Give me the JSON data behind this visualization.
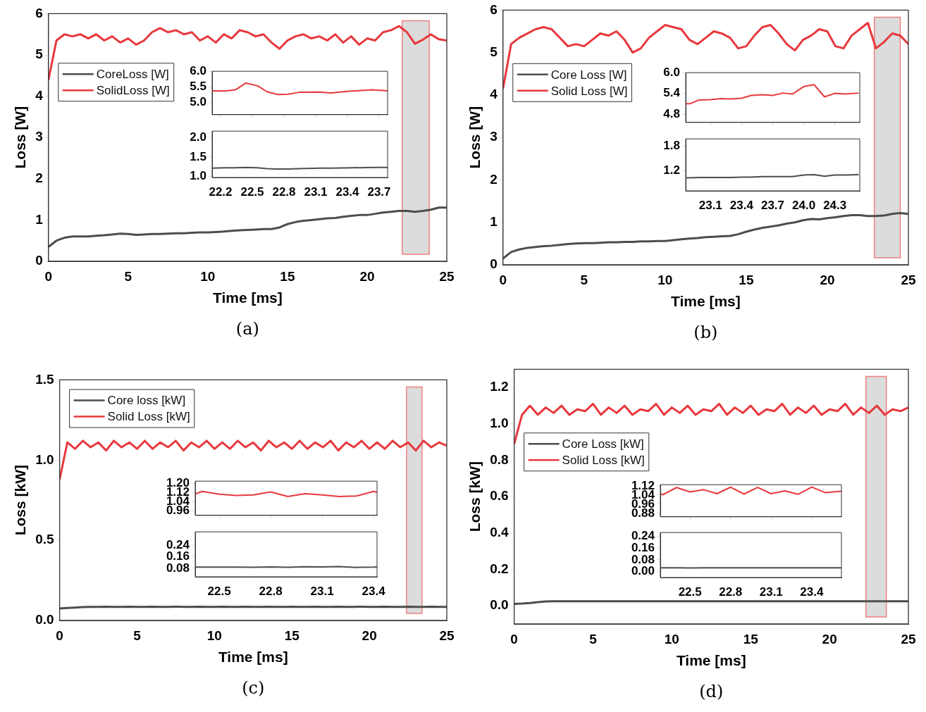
{
  "chart_data": [
    {
      "type": "line",
      "xlabel": "Time [ms]",
      "ylabel": "Loss [W]",
      "xlim": [
        0,
        25
      ],
      "xticks": [
        0,
        5,
        10,
        15,
        20,
        25
      ],
      "ylim": [
        0,
        6
      ],
      "yticks": [
        0,
        1,
        2,
        3,
        4,
        5,
        6
      ],
      "legend": "top left",
      "annotations": [
        "(a)"
      ],
      "bands": [
        {
          "axis": "x",
          "from": 22.2,
          "to": 23.9,
          "color": "#dcdcdc"
        }
      ],
      "x": [
        0,
        0.5,
        1,
        1.5,
        2,
        2.5,
        3,
        3.5,
        4,
        4.5,
        5,
        5.5,
        6,
        6.5,
        7,
        7.5,
        8,
        8.5,
        9,
        9.5,
        10,
        10.5,
        11,
        11.5,
        12,
        12.5,
        13,
        13.5,
        14,
        14.5,
        15,
        15.5,
        16,
        16.5,
        17,
        17.5,
        18,
        18.5,
        19,
        19.5,
        20,
        20.5,
        21,
        21.5,
        22,
        22.5,
        23,
        23.5,
        24,
        24.5,
        25
      ],
      "series": [
        {
          "name": "CoreLoss [W]",
          "color": "#4d4d4d",
          "values": [
            0.35,
            0.5,
            0.57,
            0.6,
            0.6,
            0.6,
            0.62,
            0.63,
            0.65,
            0.67,
            0.66,
            0.64,
            0.65,
            0.66,
            0.66,
            0.67,
            0.68,
            0.68,
            0.69,
            0.7,
            0.7,
            0.71,
            0.72,
            0.74,
            0.75,
            0.76,
            0.77,
            0.78,
            0.78,
            0.82,
            0.9,
            0.95,
            0.98,
            1.0,
            1.02,
            1.04,
            1.05,
            1.08,
            1.1,
            1.12,
            1.12,
            1.15,
            1.18,
            1.2,
            1.22,
            1.22,
            1.2,
            1.22,
            1.25,
            1.3,
            1.3
          ]
        },
        {
          "name": "SolidLoss [W]",
          "color": "#e8383d",
          "values": [
            4.4,
            5.35,
            5.5,
            5.45,
            5.5,
            5.4,
            5.5,
            5.35,
            5.45,
            5.3,
            5.4,
            5.25,
            5.35,
            5.55,
            5.65,
            5.55,
            5.6,
            5.5,
            5.55,
            5.35,
            5.45,
            5.3,
            5.5,
            5.4,
            5.6,
            5.55,
            5.45,
            5.5,
            5.3,
            5.15,
            5.35,
            5.45,
            5.5,
            5.4,
            5.45,
            5.35,
            5.5,
            5.3,
            5.45,
            5.25,
            5.4,
            5.35,
            5.55,
            5.6,
            5.7,
            5.55,
            5.27,
            5.37,
            5.5,
            5.38,
            5.35
          ]
        }
      ]
    },
    {
      "type": "line",
      "tick_labels": "y",
      "xlim": [
        22.12,
        23.78
      ],
      "xticks": [
        22.2,
        22.5,
        22.8,
        23.1,
        23.4,
        23.7
      ],
      "ylim": [
        4.6,
        6.0
      ],
      "yticks": [
        {
          "value": 5.0,
          "label": "5.0"
        },
        5.5,
        {
          "value": 6.0,
          "label": "6.0"
        }
      ],
      "x": [
        22.12,
        22.24,
        22.34,
        22.44,
        22.55,
        22.64,
        22.74,
        22.84,
        22.94,
        23.14,
        23.24,
        23.44,
        23.64,
        23.78
      ],
      "series": [
        {
          "color": "#e8383d",
          "values": [
            5.37,
            5.36,
            5.4,
            5.62,
            5.53,
            5.34,
            5.25,
            5.26,
            5.32,
            5.33,
            5.3,
            5.36,
            5.4,
            5.37
          ]
        }
      ]
    },
    {
      "type": "line",
      "xlim": [
        22.12,
        23.78
      ],
      "xticks": [
        22.2,
        22.5,
        22.8,
        23.1,
        23.4,
        23.7
      ],
      "ylim": [
        0.97,
        2.17
      ],
      "yticks": [
        {
          "value": 1.0,
          "label": "1.0"
        },
        1.5,
        {
          "value": 2.0,
          "label": "2.0"
        }
      ],
      "x": [
        22.12,
        22.24,
        22.34,
        22.44,
        22.55,
        22.64,
        22.74,
        22.84,
        22.94,
        23.14,
        23.24,
        23.44,
        23.64,
        23.78
      ],
      "series": [
        {
          "color": "#4d4d4d",
          "values": [
            1.21,
            1.22,
            1.22,
            1.23,
            1.22,
            1.2,
            1.19,
            1.19,
            1.2,
            1.21,
            1.21,
            1.22,
            1.23,
            1.23
          ]
        }
      ]
    },
    {
      "type": "line",
      "xlabel": "Time [ms]",
      "ylabel": "Loss [W]",
      "xlim": [
        0,
        25
      ],
      "xticks": [
        0,
        5,
        10,
        15,
        20,
        25
      ],
      "ylim": [
        0,
        6
      ],
      "yticks": [
        0,
        1,
        2,
        3,
        4,
        5,
        6
      ],
      "legend": "top left",
      "annotations": [
        "(b)"
      ],
      "bands": [
        {
          "axis": "x",
          "from": 22.9,
          "to": 24.5,
          "color": "#dcdcdc"
        }
      ],
      "x": [
        0,
        0.5,
        1,
        1.5,
        2,
        2.5,
        3,
        3.5,
        4,
        4.5,
        5,
        5.5,
        6,
        6.5,
        7,
        7.5,
        8,
        8.5,
        9,
        9.5,
        10,
        10.5,
        11,
        11.5,
        12,
        12.5,
        13,
        13.5,
        14,
        14.5,
        15,
        15.5,
        16,
        16.5,
        17,
        17.5,
        18,
        18.5,
        19,
        19.5,
        20,
        20.5,
        21,
        21.5,
        22,
        22.5,
        23,
        23.5,
        24,
        24.5,
        25
      ],
      "series": [
        {
          "name": "Core Loss [W]",
          "color": "#4d4d4d",
          "values": [
            0.15,
            0.3,
            0.36,
            0.4,
            0.42,
            0.44,
            0.45,
            0.47,
            0.49,
            0.5,
            0.51,
            0.51,
            0.52,
            0.53,
            0.53,
            0.54,
            0.54,
            0.55,
            0.55,
            0.56,
            0.56,
            0.58,
            0.6,
            0.62,
            0.63,
            0.65,
            0.66,
            0.67,
            0.68,
            0.72,
            0.78,
            0.83,
            0.87,
            0.9,
            0.93,
            0.97,
            1.0,
            1.05,
            1.08,
            1.07,
            1.1,
            1.12,
            1.15,
            1.17,
            1.17,
            1.15,
            1.15,
            1.16,
            1.2,
            1.22,
            1.2
          ]
        },
        {
          "name": "Solid Loss [W]",
          "color": "#e8383d",
          "values": [
            4.15,
            5.2,
            5.35,
            5.45,
            5.55,
            5.6,
            5.55,
            5.35,
            5.15,
            5.2,
            5.15,
            5.3,
            5.45,
            5.4,
            5.5,
            5.3,
            5.0,
            5.1,
            5.35,
            5.5,
            5.65,
            5.6,
            5.55,
            5.3,
            5.2,
            5.35,
            5.5,
            5.45,
            5.35,
            5.1,
            5.15,
            5.4,
            5.6,
            5.65,
            5.45,
            5.2,
            5.05,
            5.3,
            5.4,
            5.55,
            5.5,
            5.15,
            5.1,
            5.4,
            5.55,
            5.7,
            5.1,
            5.25,
            5.45,
            5.4,
            5.2
          ]
        }
      ]
    },
    {
      "type": "line",
      "tick_labels": "y",
      "xlim": [
        22.86,
        24.54
      ],
      "xticks": [
        23.1,
        23.4,
        23.7,
        {
          "value": 24.0,
          "label": null
        },
        24.3
      ],
      "ylim": [
        4.56,
        6.0
      ],
      "yticks": [
        4.8,
        5.4,
        {
          "value": 6.0,
          "label": "6.0"
        }
      ],
      "x": [
        22.86,
        22.9,
        22.99,
        23.1,
        23.2,
        23.3,
        23.4,
        23.49,
        23.6,
        23.7,
        23.8,
        23.89,
        24.0,
        24.1,
        24.2,
        24.3,
        24.4,
        24.53
      ],
      "series": [
        {
          "color": "#e8383d",
          "values": [
            5.1,
            5.1,
            5.21,
            5.22,
            5.25,
            5.24,
            5.26,
            5.34,
            5.36,
            5.34,
            5.41,
            5.38,
            5.6,
            5.65,
            5.3,
            5.4,
            5.38,
            5.41
          ]
        }
      ]
    },
    {
      "type": "line",
      "xlim": [
        22.86,
        24.54
      ],
      "xticks": [
        23.1,
        23.4,
        23.7,
        {
          "value": 24.0,
          "label": "24.0"
        },
        24.3
      ],
      "ylim": [
        0.7,
        1.98
      ],
      "yticks": [
        1.2,
        1.8
      ],
      "x": [
        22.86,
        22.9,
        22.99,
        23.1,
        23.2,
        23.3,
        23.4,
        23.49,
        23.6,
        23.7,
        23.8,
        23.89,
        24.0,
        24.1,
        24.2,
        24.3,
        24.4,
        24.53
      ],
      "series": [
        {
          "color": "#4d4d4d",
          "values": [
            1.02,
            1.02,
            1.03,
            1.03,
            1.03,
            1.03,
            1.04,
            1.04,
            1.05,
            1.05,
            1.05,
            1.05,
            1.09,
            1.1,
            1.06,
            1.09,
            1.09,
            1.1
          ]
        }
      ]
    },
    {
      "type": "line",
      "xlabel": "Time [ms]",
      "ylabel": "Loss [kW]",
      "xlim": [
        0,
        25
      ],
      "xticks": [
        0,
        5,
        10,
        15,
        20,
        25
      ],
      "ylim": [
        0,
        1.5
      ],
      "yticks": [
        {
          "value": 0,
          "label": "0.0"
        },
        0.5,
        {
          "value": 1,
          "label": "1.0"
        },
        1.5
      ],
      "legend": "top left",
      "annotations": [
        "(c)"
      ],
      "bands": [
        {
          "axis": "x",
          "from": 22.4,
          "to": 23.4,
          "color": "#dcdcdc"
        }
      ],
      "x": [
        0,
        0.5,
        1,
        1.5,
        2,
        2.5,
        3,
        3.5,
        4,
        4.5,
        5,
        5.5,
        6,
        6.5,
        7,
        7.5,
        8,
        8.5,
        9,
        9.5,
        10,
        10.5,
        11,
        11.5,
        12,
        12.5,
        13,
        13.5,
        14,
        14.5,
        15,
        15.5,
        16,
        16.5,
        17,
        17.5,
        18,
        18.5,
        19,
        19.5,
        20,
        20.5,
        21,
        21.5,
        22,
        22.5,
        23,
        23.5,
        24,
        24.5,
        25
      ],
      "series": [
        {
          "name": "Core loss [kW]",
          "color": "#4d4d4d",
          "values": [
            0.075,
            0.078,
            0.08,
            0.083,
            0.085,
            0.085,
            0.086,
            0.085,
            0.085,
            0.086,
            0.085,
            0.085,
            0.086,
            0.085,
            0.085,
            0.086,
            0.085,
            0.085,
            0.086,
            0.085,
            0.085,
            0.086,
            0.085,
            0.085,
            0.086,
            0.085,
            0.085,
            0.086,
            0.085,
            0.085,
            0.086,
            0.085,
            0.085,
            0.086,
            0.085,
            0.085,
            0.086,
            0.085,
            0.085,
            0.086,
            0.085,
            0.085,
            0.086,
            0.085,
            0.085,
            0.086,
            0.085,
            0.085,
            0.086,
            0.085,
            0.085
          ]
        },
        {
          "name": "Solid Loss [kW]",
          "color": "#e8383d",
          "values": [
            0.88,
            1.11,
            1.07,
            1.12,
            1.08,
            1.11,
            1.06,
            1.12,
            1.08,
            1.11,
            1.07,
            1.12,
            1.07,
            1.11,
            1.08,
            1.12,
            1.06,
            1.11,
            1.08,
            1.12,
            1.07,
            1.11,
            1.07,
            1.12,
            1.08,
            1.11,
            1.06,
            1.12,
            1.08,
            1.11,
            1.07,
            1.12,
            1.07,
            1.11,
            1.08,
            1.12,
            1.06,
            1.11,
            1.08,
            1.12,
            1.07,
            1.11,
            1.07,
            1.12,
            1.08,
            1.11,
            1.06,
            1.12,
            1.08,
            1.11,
            1.09
          ]
        }
      ]
    },
    {
      "type": "line",
      "tick_labels": "y",
      "xlim": [
        22.36,
        23.42
      ],
      "xticks": [
        22.5,
        22.8,
        23.1,
        23.4
      ],
      "ylim": [
        0.92,
        1.22
      ],
      "yticks": [
        {
          "value": 0.96,
          "label": "0.96"
        },
        {
          "value": 1.04,
          "label": "1.04"
        },
        {
          "value": 1.12,
          "label": "1.12"
        },
        {
          "value": 1.2,
          "label": "1.20"
        }
      ],
      "x": [
        22.36,
        22.4,
        22.5,
        22.6,
        22.7,
        22.8,
        22.9,
        23.0,
        23.1,
        23.2,
        23.3,
        23.4,
        23.42
      ],
      "series": [
        {
          "color": "#e8383d",
          "values": [
            1.106,
            1.13,
            1.106,
            1.095,
            1.1,
            1.125,
            1.085,
            1.11,
            1.1,
            1.085,
            1.09,
            1.13,
            1.12
          ]
        }
      ]
    },
    {
      "type": "line",
      "xlim": [
        22.36,
        23.42
      ],
      "xticks": [
        22.5,
        22.8,
        23.1,
        23.4
      ],
      "ylim": [
        0.02,
        0.335
      ],
      "yticks": [
        0.08,
        0.16,
        0.24
      ],
      "x": [
        22.36,
        22.4,
        22.5,
        22.6,
        22.7,
        22.8,
        22.9,
        23.0,
        23.1,
        23.2,
        23.3,
        23.4,
        23.42
      ],
      "series": [
        {
          "color": "#4d4d4d",
          "values": [
            0.088,
            0.088,
            0.088,
            0.088,
            0.087,
            0.089,
            0.087,
            0.09,
            0.089,
            0.091,
            0.086,
            0.088,
            0.089
          ]
        }
      ]
    },
    {
      "type": "line",
      "xlabel": "Time [ms]",
      "ylabel": "Loss [kW]",
      "xlim": [
        0,
        25
      ],
      "xticks": [
        0,
        5,
        10,
        15,
        20,
        25
      ],
      "ylim": [
        -0.1,
        1.3
      ],
      "yticks": [
        {
          "value": 0,
          "label": "0.0"
        },
        0.2,
        0.4,
        0.6,
        0.8,
        {
          "value": 1,
          "label": "1.0"
        },
        1.2
      ],
      "legend": "top left",
      "annotations": [
        "(d)"
      ],
      "bands": [
        {
          "axis": "x",
          "from": 22.3,
          "to": 23.6,
          "color": "#dcdcdc"
        }
      ],
      "x": [
        0,
        0.5,
        1,
        1.5,
        2,
        2.5,
        3,
        3.5,
        4,
        4.5,
        5,
        5.5,
        6,
        6.5,
        7,
        7.5,
        8,
        8.5,
        9,
        9.5,
        10,
        10.5,
        11,
        11.5,
        12,
        12.5,
        13,
        13.5,
        14,
        14.5,
        15,
        15.5,
        16,
        16.5,
        17,
        17.5,
        18,
        18.5,
        19,
        19.5,
        20,
        20.5,
        21,
        21.5,
        22,
        22.5,
        23,
        23.5,
        24,
        24.5,
        25
      ],
      "series": [
        {
          "name": "Core Loss [kW]",
          "color": "#4d4d4d",
          "values": [
            0.01,
            0.012,
            0.015,
            0.02,
            0.024,
            0.025,
            0.025,
            0.025,
            0.025,
            0.025,
            0.025,
            0.025,
            0.025,
            0.025,
            0.025,
            0.025,
            0.025,
            0.025,
            0.025,
            0.025,
            0.025,
            0.025,
            0.025,
            0.025,
            0.025,
            0.025,
            0.025,
            0.025,
            0.025,
            0.025,
            0.025,
            0.025,
            0.025,
            0.025,
            0.025,
            0.025,
            0.025,
            0.025,
            0.025,
            0.025,
            0.025,
            0.025,
            0.025,
            0.025,
            0.025,
            0.025,
            0.025,
            0.025,
            0.025,
            0.025,
            0.025
          ]
        },
        {
          "name": "Solid Loss [kW]",
          "color": "#e8383d",
          "values": [
            0.89,
            1.05,
            1.1,
            1.05,
            1.09,
            1.06,
            1.1,
            1.05,
            1.08,
            1.07,
            1.11,
            1.05,
            1.09,
            1.06,
            1.1,
            1.05,
            1.08,
            1.07,
            1.11,
            1.05,
            1.09,
            1.06,
            1.1,
            1.05,
            1.08,
            1.07,
            1.11,
            1.05,
            1.09,
            1.06,
            1.1,
            1.05,
            1.08,
            1.07,
            1.11,
            1.05,
            1.09,
            1.06,
            1.1,
            1.05,
            1.08,
            1.07,
            1.11,
            1.05,
            1.09,
            1.06,
            1.1,
            1.05,
            1.08,
            1.07,
            1.09
          ]
        }
      ]
    },
    {
      "type": "line",
      "tick_labels": "y",
      "xlim": [
        22.28,
        23.62
      ],
      "xticks": [
        22.5,
        22.8,
        23.1,
        23.4
      ],
      "ylim": [
        0.85,
        1.131
      ],
      "yticks": [
        {
          "value": 0.88,
          "label": "0.88"
        },
        {
          "value": 0.96,
          "label": "0.96"
        },
        {
          "value": 1.04,
          "label": "1.04"
        },
        {
          "value": 1.12,
          "label": "1.12"
        }
      ],
      "x": [
        22.28,
        22.3,
        22.4,
        22.5,
        22.6,
        22.7,
        22.8,
        22.9,
        23.0,
        23.1,
        23.2,
        23.3,
        23.4,
        23.5,
        23.62
      ],
      "series": [
        {
          "color": "#e8383d",
          "values": [
            1.054,
            1.043,
            1.106,
            1.068,
            1.087,
            1.052,
            1.109,
            1.049,
            1.107,
            1.052,
            1.077,
            1.047,
            1.11,
            1.062,
            1.073
          ]
        }
      ]
    },
    {
      "type": "line",
      "xlim": [
        22.28,
        23.62
      ],
      "xticks": [
        22.5,
        22.8,
        23.1,
        23.4
      ],
      "ylim": [
        -0.04,
        0.264
      ],
      "yticks": [
        {
          "value": 0,
          "label": "0.00"
        },
        0.08,
        0.16,
        0.24
      ],
      "x": [
        22.28,
        22.3,
        22.4,
        22.5,
        22.6,
        22.7,
        22.8,
        22.9,
        23.0,
        23.1,
        23.2,
        23.3,
        23.4,
        23.5,
        23.62
      ],
      "series": [
        {
          "color": "#4d4d4d",
          "values": [
            0.025,
            0.025,
            0.025,
            0.024,
            0.025,
            0.025,
            0.025,
            0.025,
            0.026,
            0.025,
            0.025,
            0.025,
            0.025,
            0.025,
            0.025
          ]
        }
      ]
    }
  ]
}
